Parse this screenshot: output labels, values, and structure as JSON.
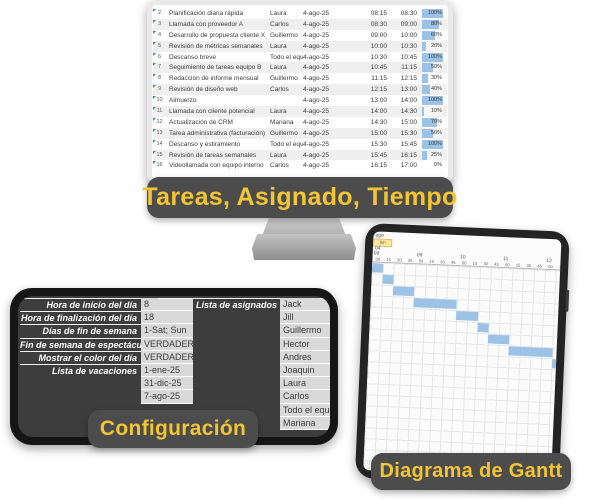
{
  "captions": {
    "monitor": "Tareas, Asignado, Tiempo",
    "phone": "Configuración",
    "tablet": "Diagrama de Gantt"
  },
  "colors": {
    "caption_bg": "#4C4C4C",
    "caption_text": "#F3C534",
    "data_bar_blue": "#9CC2E5",
    "weekday_highlight": "#FFE699",
    "phone_value_cell": "#D9D9D9",
    "row_band": "#EFEFEF"
  },
  "task_table": {
    "rows": [
      {
        "num": "2",
        "task": "Planificación diaria rápida",
        "assignee": "Laura",
        "date": "4-ago-25",
        "start": "08:15",
        "end": "08:30",
        "progress": "100%",
        "pct": 100
      },
      {
        "num": "3",
        "task": "Llamada con proveedor A",
        "assignee": "Carlos",
        "date": "4-ago-25",
        "start": "08:30",
        "end": "09:00",
        "progress": "80%",
        "pct": 80
      },
      {
        "num": "4",
        "task": "Desarrollo de propuesta cliente X",
        "assignee": "Guillermo",
        "date": "4-ago-25",
        "start": "09:00",
        "end": "10:00",
        "progress": "60%",
        "pct": 60
      },
      {
        "num": "5",
        "task": "Revisión de métricas semanales",
        "assignee": "Laura",
        "date": "4-ago-25",
        "start": "10:00",
        "end": "10:30",
        "progress": "20%",
        "pct": 20
      },
      {
        "num": "6",
        "task": "Descanso breve",
        "assignee": "Todo el equipo",
        "date": "4-ago-25",
        "start": "10:30",
        "end": "10:45",
        "progress": "100%",
        "pct": 100
      },
      {
        "num": "7",
        "task": "Seguimiento de tareas equipo B",
        "assignee": "Laura",
        "date": "4-ago-25",
        "start": "10:45",
        "end": "11:15",
        "progress": "50%",
        "pct": 50
      },
      {
        "num": "8",
        "task": "Redacción de informe mensual",
        "assignee": "Guillermo",
        "date": "4-ago-25",
        "start": "11:15",
        "end": "12:15",
        "progress": "30%",
        "pct": 30
      },
      {
        "num": "9",
        "task": "Revisión de diseño web",
        "assignee": "Carlos",
        "date": "4-ago-25",
        "start": "12:15",
        "end": "13:00",
        "progress": "40%",
        "pct": 40
      },
      {
        "num": "10",
        "task": "Almuerzo",
        "assignee": "",
        "date": "4-ago-25",
        "start": "13:00",
        "end": "14:00",
        "progress": "100%",
        "pct": 100
      },
      {
        "num": "11",
        "task": "Llamada con cliente potencial",
        "assignee": "Laura",
        "date": "4-ago-25",
        "start": "14:00",
        "end": "14:30",
        "progress": "10%",
        "pct": 10
      },
      {
        "num": "12",
        "task": "Actualización de CRM",
        "assignee": "Mariana",
        "date": "4-ago-25",
        "start": "14:30",
        "end": "15:00",
        "progress": "70%",
        "pct": 70
      },
      {
        "num": "13",
        "task": "Tarea administrativa (facturación)",
        "assignee": "Guillermo",
        "date": "4-ago-25",
        "start": "15:00",
        "end": "15:30",
        "progress": "50%",
        "pct": 50
      },
      {
        "num": "14",
        "task": "Descanso y estiramiento",
        "assignee": "Todo el equipo",
        "date": "4-ago-25",
        "start": "15:30",
        "end": "15:45",
        "progress": "100%",
        "pct": 100
      },
      {
        "num": "15",
        "task": "Revisión de tareas semanales",
        "assignee": "Laura",
        "date": "4-ago-25",
        "start": "15:45",
        "end": "16:15",
        "progress": "25%",
        "pct": 25
      },
      {
        "num": "16",
        "task": "Videollamada con equipo interno",
        "assignee": "Carlos",
        "date": "4-ago-25",
        "start": "16:15",
        "end": "17:00",
        "progress": "0%",
        "pct": 0
      }
    ]
  },
  "config": {
    "fields": [
      {
        "label": "Hora de inicio del día",
        "values": [
          "8"
        ]
      },
      {
        "label": "Hora de finalización del día",
        "values": [
          "18"
        ]
      },
      {
        "label": "Días de fin de semana",
        "values": [
          "1-Sat; Sun"
        ]
      },
      {
        "label": "Fin de semana de espectáculos",
        "values": [
          "VERDADERO"
        ]
      },
      {
        "label": "Mostrar el color del día",
        "values": [
          "VERDADERO"
        ]
      },
      {
        "label": "Lista de vacaciones",
        "values": [
          "1-ene-25",
          "31-dic-25",
          "7-ago-25"
        ]
      }
    ],
    "assignees_label": "Lista de asignados",
    "assignees": [
      "Jack",
      "Jill",
      "Guillermo",
      "Hector",
      "Andres",
      "Joaquin",
      "Laura",
      "Carlos",
      "Todo el equipo",
      "Mariana"
    ]
  },
  "chart_data": {
    "type": "gantt",
    "title": "Diagrama de Gantt",
    "date_header": {
      "month": "ago",
      "weekday": "lun",
      "day": "04"
    },
    "axis": {
      "start_time": "08:00",
      "interval_minutes": 15,
      "visible_columns": 18,
      "hour_labels": [
        "08",
        "09",
        "10",
        "11",
        "12"
      ],
      "minute_cycle": [
        "00",
        "15",
        "30",
        "45"
      ],
      "grid": "on"
    },
    "bar_color": "#9CC2E5",
    "bars": [
      {
        "row": 1,
        "start": "08:00",
        "end": "08:15"
      },
      {
        "row": 2,
        "start": "08:15",
        "end": "08:30"
      },
      {
        "row": 3,
        "start": "08:30",
        "end": "09:00"
      },
      {
        "row": 4,
        "start": "09:00",
        "end": "10:00"
      },
      {
        "row": 5,
        "start": "10:00",
        "end": "10:30"
      },
      {
        "row": 6,
        "start": "10:30",
        "end": "10:45"
      },
      {
        "row": 7,
        "start": "10:45",
        "end": "11:15"
      },
      {
        "row": 8,
        "start": "11:15",
        "end": "12:15"
      },
      {
        "row": 9,
        "start": "12:15",
        "end": "13:00"
      }
    ]
  }
}
